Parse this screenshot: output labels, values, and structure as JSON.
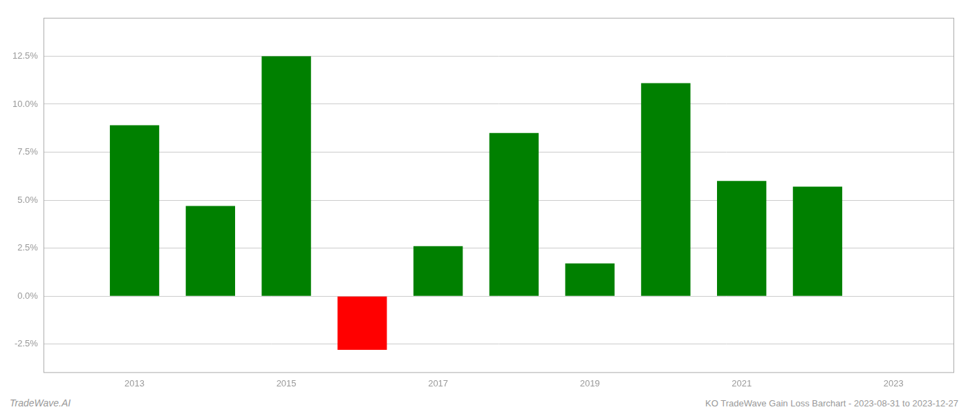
{
  "chart_data": {
    "type": "bar",
    "x": [
      2013,
      2014,
      2015,
      2016,
      2017,
      2018,
      2019,
      2020,
      2021,
      2022
    ],
    "values": [
      0.089,
      0.047,
      0.125,
      -0.028,
      0.026,
      0.085,
      0.017,
      0.111,
      0.06,
      0.057
    ],
    "colors": [
      "#008000",
      "#008000",
      "#008000",
      "#ff0000",
      "#008000",
      "#008000",
      "#008000",
      "#008000",
      "#008000",
      "#008000"
    ],
    "xlim": [
      2011.8,
      2023.8
    ],
    "xticks": [
      2013,
      2015,
      2017,
      2019,
      2021,
      2023
    ],
    "ylim": [
      -0.04,
      0.145
    ],
    "yticks": [
      {
        "value": -0.025,
        "label": "-2.5%"
      },
      {
        "value": 0.0,
        "label": "0.0%"
      },
      {
        "value": 0.025,
        "label": "2.5%"
      },
      {
        "value": 0.05,
        "label": "5.0%"
      },
      {
        "value": 0.075,
        "label": "7.5%"
      },
      {
        "value": 0.1,
        "label": "10.0%"
      },
      {
        "value": 0.125,
        "label": "12.5%"
      }
    ],
    "grid": "y",
    "annotations": [
      "TradeWave.AI",
      "KO TradeWave Gain Loss Barchart - 2023-08-31 to 2023-12-27"
    ]
  }
}
